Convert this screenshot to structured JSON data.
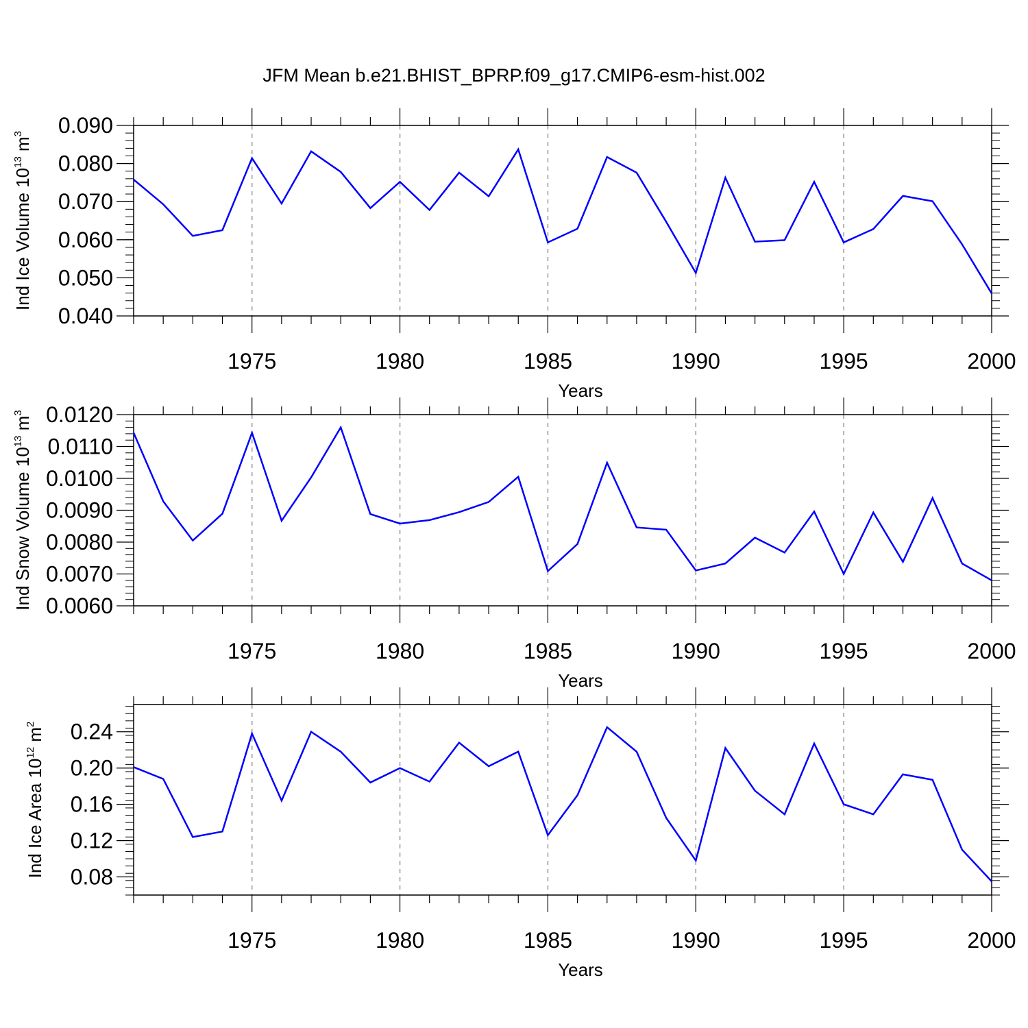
{
  "figure": {
    "title": "JFM Mean b.e21.BHIST_BPRP.f09_g17.CMIP6-esm-hist.002"
  },
  "colors": {
    "series": "#0000ff",
    "axes": "#000000",
    "grid": "#999999"
  },
  "chart_data": [
    {
      "type": "line",
      "title": "JFM Mean b.e21.BHIST_BPRP.f09_g17.CMIP6-esm-hist.002",
      "xlabel": "Years",
      "ylabel": "Ind Ice Volume 10",
      "ylabel_exp": "13",
      "ylabel_unit": " m",
      "ylabel_unit_exp": "3",
      "xlim": [
        1971,
        2000
      ],
      "ylim": [
        0.04,
        0.09
      ],
      "xticks": [
        1975,
        1980,
        1985,
        1990,
        1995,
        2000
      ],
      "yticks": [
        0.04,
        0.05,
        0.06,
        0.07,
        0.08,
        0.09
      ],
      "ytick_labels": [
        "0.040",
        "0.050",
        "0.060",
        "0.070",
        "0.080",
        "0.090"
      ],
      "grid": "vertical dashed at major x ticks",
      "x": [
        1971,
        1972,
        1973,
        1974,
        1975,
        1976,
        1977,
        1978,
        1979,
        1980,
        1981,
        1982,
        1983,
        1984,
        1985,
        1986,
        1987,
        1988,
        1989,
        1990,
        1991,
        1992,
        1993,
        1994,
        1995,
        1996,
        1997,
        1998,
        1999,
        2000
      ],
      "y": [
        0.0758,
        0.0693,
        0.061,
        0.0625,
        0.0814,
        0.0695,
        0.0832,
        0.0778,
        0.0683,
        0.0752,
        0.0678,
        0.0776,
        0.0714,
        0.0837,
        0.0593,
        0.0629,
        0.0817,
        0.0776,
        0.0647,
        0.0513,
        0.0763,
        0.0595,
        0.0599,
        0.0752,
        0.0593,
        0.0628,
        0.0715,
        0.0701,
        0.0588,
        0.0459
      ]
    },
    {
      "type": "line",
      "xlabel": "Years",
      "ylabel": "Ind Snow Volume 10",
      "ylabel_exp": "13",
      "ylabel_unit": " m",
      "ylabel_unit_exp": "3",
      "xlim": [
        1971,
        2000
      ],
      "ylim": [
        0.006,
        0.012
      ],
      "xticks": [
        1975,
        1980,
        1985,
        1990,
        1995,
        2000
      ],
      "yticks": [
        0.006,
        0.007,
        0.008,
        0.009,
        0.01,
        0.011,
        0.012
      ],
      "ytick_labels": [
        "0.0060",
        "0.0070",
        "0.0080",
        "0.0090",
        "0.0100",
        "0.0110",
        "0.0120"
      ],
      "grid": "vertical dashed at major x ticks",
      "x": [
        1971,
        1972,
        1973,
        1974,
        1975,
        1976,
        1977,
        1978,
        1979,
        1980,
        1981,
        1982,
        1983,
        1984,
        1985,
        1986,
        1987,
        1988,
        1989,
        1990,
        1991,
        1992,
        1993,
        1994,
        1995,
        1996,
        1997,
        1998,
        1999,
        2000
      ],
      "y": [
        0.01143,
        0.00928,
        0.00805,
        0.00889,
        0.01143,
        0.00867,
        0.01003,
        0.0116,
        0.00888,
        0.00858,
        0.00869,
        0.00894,
        0.00926,
        0.01005,
        0.00709,
        0.00794,
        0.01049,
        0.00846,
        0.00839,
        0.00711,
        0.00733,
        0.00814,
        0.00767,
        0.00896,
        0.007,
        0.00893,
        0.00738,
        0.00938,
        0.00733,
        0.0068
      ]
    },
    {
      "type": "line",
      "xlabel": "Years",
      "ylabel": "Ind Ice Area 10",
      "ylabel_exp": "12",
      "ylabel_unit": " m",
      "ylabel_unit_exp": "2",
      "xlim": [
        1971,
        2000
      ],
      "ylim": [
        0.06,
        0.27
      ],
      "xticks": [
        1975,
        1980,
        1985,
        1990,
        1995,
        2000
      ],
      "yticks": [
        0.08,
        0.12,
        0.16,
        0.2,
        0.24
      ],
      "ytick_labels": [
        "0.08",
        "0.12",
        "0.16",
        "0.20",
        "0.24"
      ],
      "grid": "vertical dashed at major x ticks",
      "x": [
        1971,
        1972,
        1973,
        1974,
        1975,
        1976,
        1977,
        1978,
        1979,
        1980,
        1981,
        1982,
        1983,
        1984,
        1985,
        1986,
        1987,
        1988,
        1989,
        1990,
        1991,
        1992,
        1993,
        1994,
        1995,
        1996,
        1997,
        1998,
        1999,
        2000
      ],
      "y": [
        0.201,
        0.188,
        0.124,
        0.13,
        0.238,
        0.164,
        0.24,
        0.218,
        0.184,
        0.2,
        0.185,
        0.228,
        0.202,
        0.218,
        0.126,
        0.17,
        0.245,
        0.218,
        0.145,
        0.098,
        0.222,
        0.175,
        0.149,
        0.227,
        0.16,
        0.149,
        0.193,
        0.187,
        0.11,
        0.075
      ]
    }
  ]
}
